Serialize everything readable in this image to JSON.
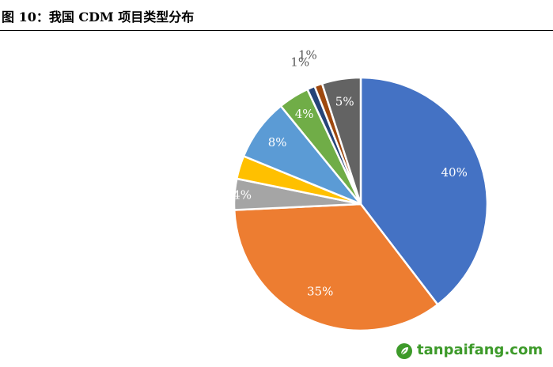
{
  "figure": {
    "title": "图 10：我国 CDM 项目类型分布"
  },
  "chart_data": {
    "type": "pie",
    "title": "",
    "slices": [
      {
        "value": 40,
        "label": "40%",
        "color": "#4472C4"
      },
      {
        "value": 35,
        "label": "35%",
        "color": "#ED7D31"
      },
      {
        "value": 4,
        "label": "4%",
        "color": "#A5A5A5"
      },
      {
        "value": 3,
        "label": "",
        "color": "#FFC000"
      },
      {
        "value": 8,
        "label": "8%",
        "color": "#5B9BD5"
      },
      {
        "value": 4,
        "label": "4%",
        "color": "#70AD47"
      },
      {
        "value": 1,
        "label": "1%",
        "color": "#264478"
      },
      {
        "value": 1,
        "label": "1%",
        "color": "#9E480E"
      },
      {
        "value": 5,
        "label": "5%",
        "color": "#636363"
      }
    ],
    "legend": "none"
  },
  "watermark": {
    "text": "tanpaifang.com",
    "color": "#3d9a2a"
  }
}
